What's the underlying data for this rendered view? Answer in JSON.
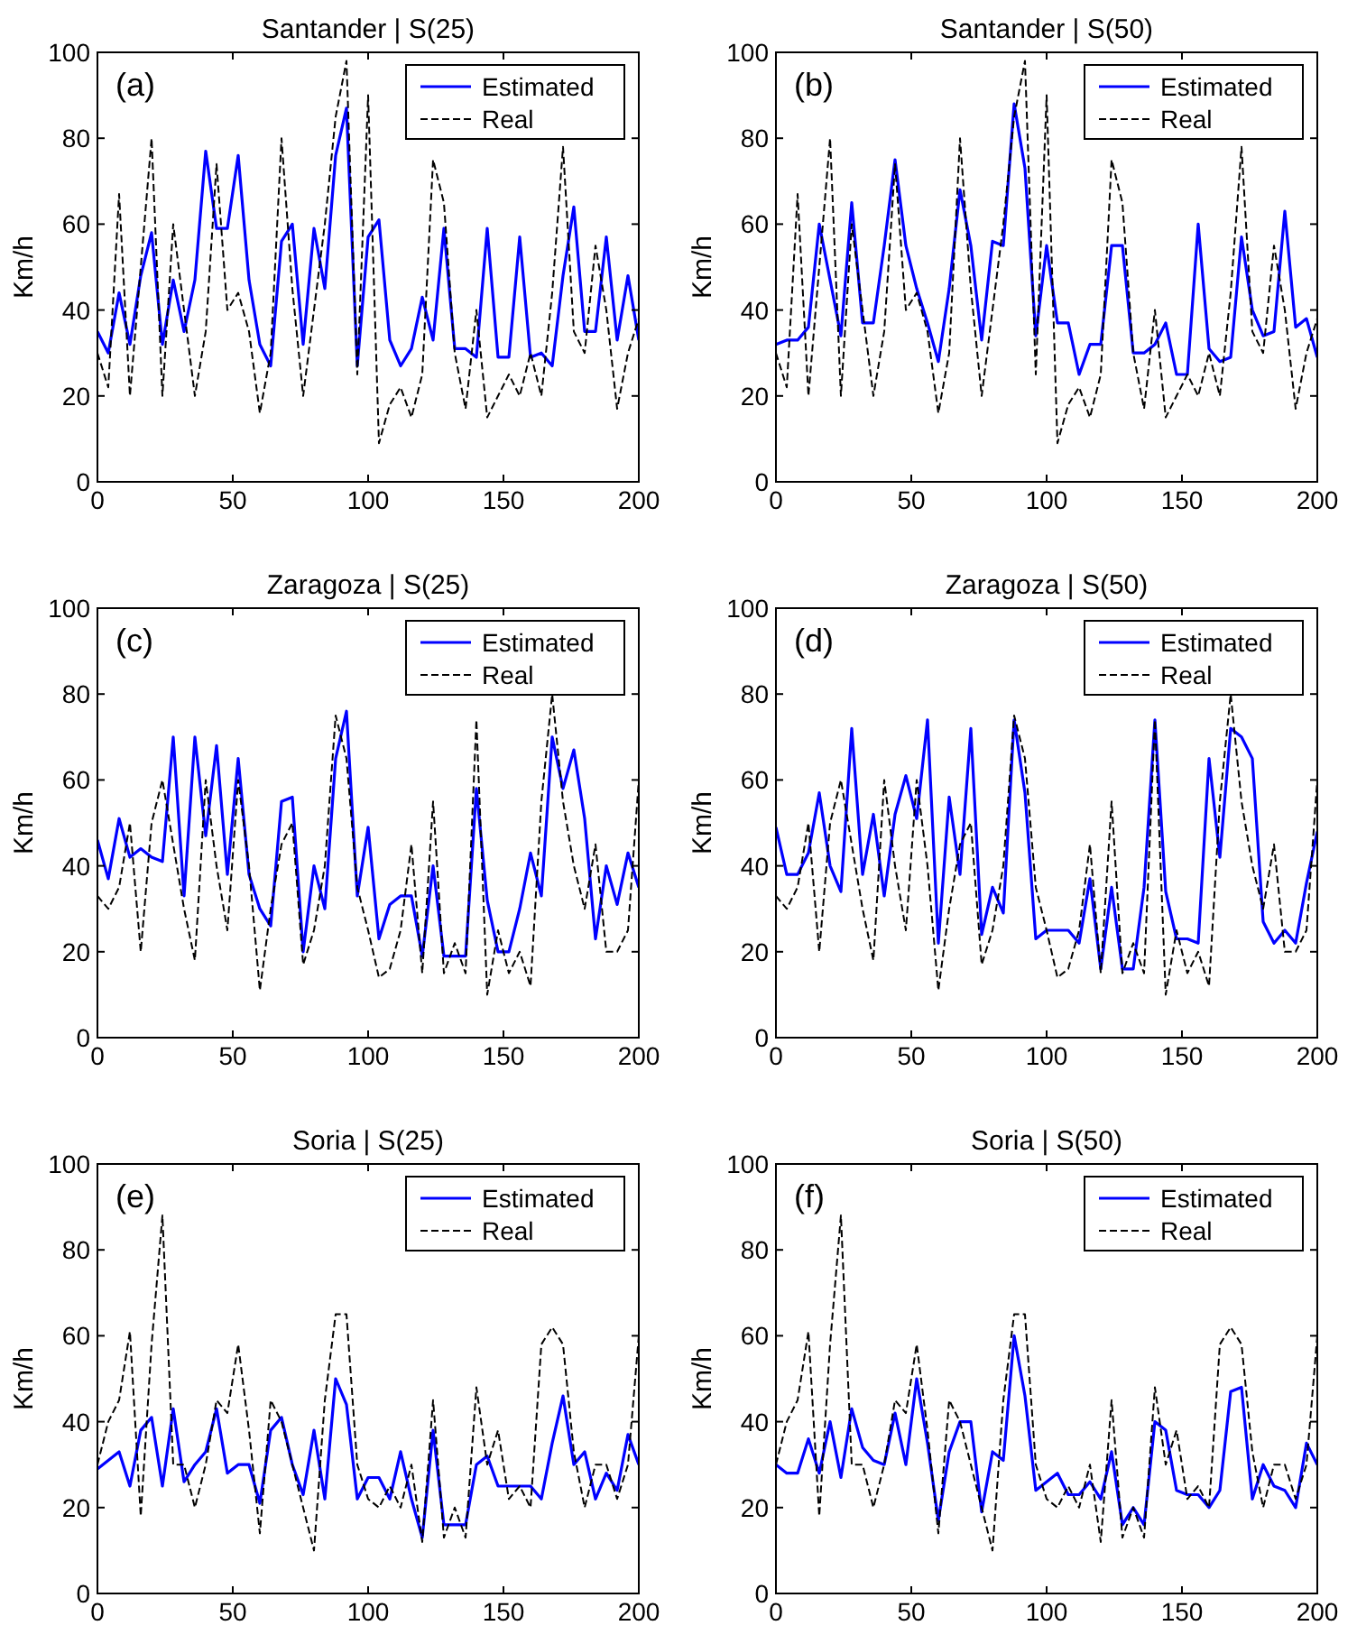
{
  "chart_data": [
    {
      "type": "line",
      "title": "Santander | S(25)",
      "ylabel": "Km/h",
      "annotations": [
        "(a)"
      ],
      "legend": "top right",
      "xlim": [
        0,
        200
      ],
      "xticks": [
        0,
        50,
        100,
        150,
        200
      ],
      "ylim": [
        0,
        100
      ],
      "yticks": [
        0,
        20,
        40,
        60,
        80,
        100
      ],
      "x": [
        0,
        4,
        8,
        12,
        16,
        20,
        24,
        28,
        32,
        36,
        40,
        44,
        48,
        52,
        56,
        60,
        64,
        68,
        72,
        76,
        80,
        84,
        88,
        92,
        96,
        100,
        104,
        108,
        112,
        116,
        120,
        124,
        128,
        132,
        136,
        140,
        144,
        148,
        152,
        156,
        160,
        164,
        168,
        172,
        176,
        180,
        184,
        188,
        192,
        196,
        200
      ],
      "series": [
        {
          "name": "Estimated",
          "color": "#0000ff",
          "line_style": "solid",
          "values": [
            35,
            30,
            44,
            32,
            48,
            58,
            32,
            47,
            35,
            47,
            77,
            59,
            59,
            76,
            47,
            32,
            27,
            56,
            60,
            32,
            59,
            45,
            76,
            87,
            27,
            57,
            61,
            33,
            27,
            31,
            43,
            33,
            59,
            31,
            31,
            29,
            59,
            29,
            29,
            57,
            29,
            30,
            27,
            48,
            64,
            35,
            35,
            57,
            33,
            48,
            33
          ]
        },
        {
          "name": "Real",
          "color": "#000000",
          "line_style": "dashed",
          "values": [
            30,
            22,
            67,
            20,
            50,
            80,
            20,
            60,
            40,
            20,
            35,
            74,
            40,
            44,
            35,
            16,
            30,
            80,
            45,
            20,
            40,
            60,
            85,
            98,
            25,
            90,
            9,
            18,
            22,
            15,
            25,
            75,
            65,
            30,
            17,
            40,
            15,
            20,
            25,
            20,
            30,
            20,
            44,
            78,
            35,
            30,
            55,
            40,
            17,
            30,
            38
          ]
        }
      ]
    },
    {
      "type": "line",
      "title": "Santander | S(50)",
      "ylabel": "Km/h",
      "annotations": [
        "(b)"
      ],
      "legend": "top right",
      "xlim": [
        0,
        200
      ],
      "xticks": [
        0,
        50,
        100,
        150,
        200
      ],
      "ylim": [
        0,
        100
      ],
      "yticks": [
        0,
        20,
        40,
        60,
        80,
        100
      ],
      "x": [
        0,
        4,
        8,
        12,
        16,
        20,
        24,
        28,
        32,
        36,
        40,
        44,
        48,
        52,
        56,
        60,
        64,
        68,
        72,
        76,
        80,
        84,
        88,
        92,
        96,
        100,
        104,
        108,
        112,
        116,
        120,
        124,
        128,
        132,
        136,
        140,
        144,
        148,
        152,
        156,
        160,
        164,
        168,
        172,
        176,
        180,
        184,
        188,
        192,
        196,
        200
      ],
      "series": [
        {
          "name": "Estimated",
          "color": "#0000ff",
          "line_style": "solid",
          "values": [
            32,
            33,
            33,
            36,
            60,
            47,
            34,
            65,
            37,
            37,
            55,
            75,
            55,
            45,
            37,
            28,
            45,
            68,
            55,
            33,
            56,
            55,
            88,
            73,
            34,
            55,
            37,
            37,
            25,
            32,
            32,
            55,
            55,
            30,
            30,
            32,
            37,
            25,
            25,
            60,
            31,
            28,
            29,
            57,
            40,
            34,
            35,
            63,
            36,
            38,
            29
          ]
        },
        {
          "name": "Real",
          "color": "#000000",
          "line_style": "dashed",
          "values": [
            30,
            22,
            67,
            20,
            50,
            80,
            20,
            60,
            40,
            20,
            35,
            74,
            40,
            44,
            35,
            16,
            30,
            80,
            45,
            20,
            40,
            60,
            85,
            98,
            25,
            90,
            9,
            18,
            22,
            15,
            25,
            75,
            65,
            30,
            17,
            40,
            15,
            20,
            25,
            20,
            30,
            20,
            44,
            78,
            35,
            30,
            55,
            40,
            17,
            30,
            38
          ]
        }
      ]
    },
    {
      "type": "line",
      "title": "Zaragoza | S(25)",
      "ylabel": "Km/h",
      "annotations": [
        "(c)"
      ],
      "legend": "top right",
      "xlim": [
        0,
        200
      ],
      "xticks": [
        0,
        50,
        100,
        150,
        200
      ],
      "ylim": [
        0,
        100
      ],
      "yticks": [
        0,
        20,
        40,
        60,
        80,
        100
      ],
      "x": [
        0,
        4,
        8,
        12,
        16,
        20,
        24,
        28,
        32,
        36,
        40,
        44,
        48,
        52,
        56,
        60,
        64,
        68,
        72,
        76,
        80,
        84,
        88,
        92,
        96,
        100,
        104,
        108,
        112,
        116,
        120,
        124,
        128,
        132,
        136,
        140,
        144,
        148,
        152,
        156,
        160,
        164,
        168,
        172,
        176,
        180,
        184,
        188,
        192,
        196,
        200
      ],
      "series": [
        {
          "name": "Estimated",
          "color": "#0000ff",
          "line_style": "solid",
          "values": [
            46,
            37,
            51,
            42,
            44,
            42,
            41,
            70,
            33,
            70,
            47,
            68,
            38,
            65,
            38,
            30,
            26,
            55,
            56,
            20,
            40,
            30,
            65,
            76,
            33,
            49,
            23,
            31,
            33,
            33,
            19,
            40,
            19,
            19,
            19,
            58,
            32,
            20,
            20,
            30,
            43,
            33,
            70,
            58,
            67,
            51,
            23,
            40,
            31,
            43,
            35
          ]
        },
        {
          "name": "Real",
          "color": "#000000",
          "line_style": "dashed",
          "values": [
            33,
            30,
            35,
            50,
            20,
            50,
            60,
            45,
            30,
            18,
            60,
            40,
            25,
            60,
            40,
            11,
            30,
            45,
            50,
            17,
            25,
            40,
            75,
            65,
            35,
            25,
            14,
            16,
            25,
            45,
            15,
            55,
            15,
            22,
            15,
            74,
            10,
            25,
            15,
            20,
            12,
            55,
            80,
            55,
            40,
            30,
            45,
            20,
            20,
            25,
            60
          ]
        }
      ]
    },
    {
      "type": "line",
      "title": "Zaragoza | S(50)",
      "ylabel": "Km/h",
      "annotations": [
        "(d)"
      ],
      "legend": "top right",
      "xlim": [
        0,
        200
      ],
      "xticks": [
        0,
        50,
        100,
        150,
        200
      ],
      "ylim": [
        0,
        100
      ],
      "yticks": [
        0,
        20,
        40,
        60,
        80,
        100
      ],
      "x": [
        0,
        4,
        8,
        12,
        16,
        20,
        24,
        28,
        32,
        36,
        40,
        44,
        48,
        52,
        56,
        60,
        64,
        68,
        72,
        76,
        80,
        84,
        88,
        92,
        96,
        100,
        104,
        108,
        112,
        116,
        120,
        124,
        128,
        132,
        136,
        140,
        144,
        148,
        152,
        156,
        160,
        164,
        168,
        172,
        176,
        180,
        184,
        188,
        192,
        196,
        200
      ],
      "series": [
        {
          "name": "Estimated",
          "color": "#0000ff",
          "line_style": "solid",
          "values": [
            49,
            38,
            38,
            43,
            57,
            40,
            34,
            72,
            38,
            52,
            33,
            52,
            61,
            51,
            74,
            22,
            56,
            38,
            72,
            24,
            35,
            29,
            74,
            57,
            23,
            25,
            25,
            25,
            22,
            37,
            16,
            35,
            16,
            16,
            35,
            74,
            34,
            23,
            23,
            22,
            65,
            42,
            72,
            70,
            65,
            27,
            22,
            25,
            22,
            36,
            48
          ]
        },
        {
          "name": "Real",
          "color": "#000000",
          "line_style": "dashed",
          "values": [
            33,
            30,
            35,
            50,
            20,
            50,
            60,
            45,
            30,
            18,
            60,
            40,
            25,
            60,
            40,
            11,
            30,
            45,
            50,
            17,
            25,
            40,
            75,
            65,
            35,
            25,
            14,
            16,
            25,
            45,
            15,
            55,
            15,
            22,
            15,
            74,
            10,
            25,
            15,
            20,
            12,
            55,
            80,
            55,
            40,
            30,
            45,
            20,
            20,
            25,
            60
          ]
        }
      ]
    },
    {
      "type": "line",
      "title": "Soria | S(25)",
      "ylabel": "Km/h",
      "annotations": [
        "(e)"
      ],
      "legend": "top right",
      "xlim": [
        0,
        200
      ],
      "xticks": [
        0,
        50,
        100,
        150,
        200
      ],
      "ylim": [
        0,
        100
      ],
      "yticks": [
        0,
        20,
        40,
        60,
        80,
        100
      ],
      "x": [
        0,
        4,
        8,
        12,
        16,
        20,
        24,
        28,
        32,
        36,
        40,
        44,
        48,
        52,
        56,
        60,
        64,
        68,
        72,
        76,
        80,
        84,
        88,
        92,
        96,
        100,
        104,
        108,
        112,
        116,
        120,
        124,
        128,
        132,
        136,
        140,
        144,
        148,
        152,
        156,
        160,
        164,
        168,
        172,
        176,
        180,
        184,
        188,
        192,
        196,
        200
      ],
      "series": [
        {
          "name": "Estimated",
          "color": "#0000ff",
          "line_style": "solid",
          "values": [
            29,
            31,
            33,
            25,
            38,
            41,
            25,
            43,
            26,
            30,
            33,
            43,
            28,
            30,
            30,
            21,
            38,
            41,
            30,
            23,
            38,
            22,
            50,
            44,
            22,
            27,
            27,
            22,
            33,
            22,
            13,
            38,
            16,
            16,
            16,
            30,
            32,
            25,
            25,
            25,
            25,
            22,
            35,
            46,
            30,
            33,
            22,
            28,
            24,
            37,
            30
          ]
        },
        {
          "name": "Real",
          "color": "#000000",
          "line_style": "dashed",
          "values": [
            30,
            40,
            45,
            61,
            18,
            58,
            88,
            30,
            30,
            20,
            30,
            45,
            42,
            58,
            38,
            14,
            45,
            40,
            30,
            20,
            10,
            45,
            65,
            65,
            30,
            22,
            20,
            25,
            20,
            30,
            12,
            45,
            13,
            20,
            13,
            48,
            30,
            38,
            22,
            25,
            20,
            58,
            62,
            58,
            33,
            20,
            30,
            30,
            22,
            30,
            60
          ]
        }
      ]
    },
    {
      "type": "line",
      "title": "Soria | S(50)",
      "ylabel": "Km/h",
      "annotations": [
        "(f)"
      ],
      "legend": "top right",
      "xlim": [
        0,
        200
      ],
      "xticks": [
        0,
        50,
        100,
        150,
        200
      ],
      "ylim": [
        0,
        100
      ],
      "yticks": [
        0,
        20,
        40,
        60,
        80,
        100
      ],
      "x": [
        0,
        4,
        8,
        12,
        16,
        20,
        24,
        28,
        32,
        36,
        40,
        44,
        48,
        52,
        56,
        60,
        64,
        68,
        72,
        76,
        80,
        84,
        88,
        92,
        96,
        100,
        104,
        108,
        112,
        116,
        120,
        124,
        128,
        132,
        136,
        140,
        144,
        148,
        152,
        156,
        160,
        164,
        168,
        172,
        176,
        180,
        184,
        188,
        192,
        196,
        200
      ],
      "series": [
        {
          "name": "Estimated",
          "color": "#0000ff",
          "line_style": "solid",
          "values": [
            30,
            28,
            28,
            36,
            28,
            40,
            27,
            43,
            34,
            31,
            30,
            42,
            30,
            50,
            35,
            17,
            33,
            40,
            40,
            19,
            33,
            31,
            60,
            46,
            24,
            26,
            28,
            23,
            23,
            26,
            22,
            33,
            16,
            20,
            16,
            40,
            38,
            24,
            23,
            23,
            20,
            24,
            47,
            48,
            22,
            30,
            25,
            24,
            20,
            35,
            30
          ]
        },
        {
          "name": "Real",
          "color": "#000000",
          "line_style": "dashed",
          "values": [
            30,
            40,
            45,
            61,
            18,
            58,
            88,
            30,
            30,
            20,
            30,
            45,
            42,
            58,
            38,
            14,
            45,
            40,
            30,
            20,
            10,
            45,
            65,
            65,
            30,
            22,
            20,
            25,
            20,
            30,
            12,
            45,
            13,
            20,
            13,
            48,
            30,
            38,
            22,
            25,
            20,
            58,
            62,
            58,
            33,
            20,
            30,
            30,
            22,
            30,
            60
          ]
        }
      ]
    }
  ]
}
